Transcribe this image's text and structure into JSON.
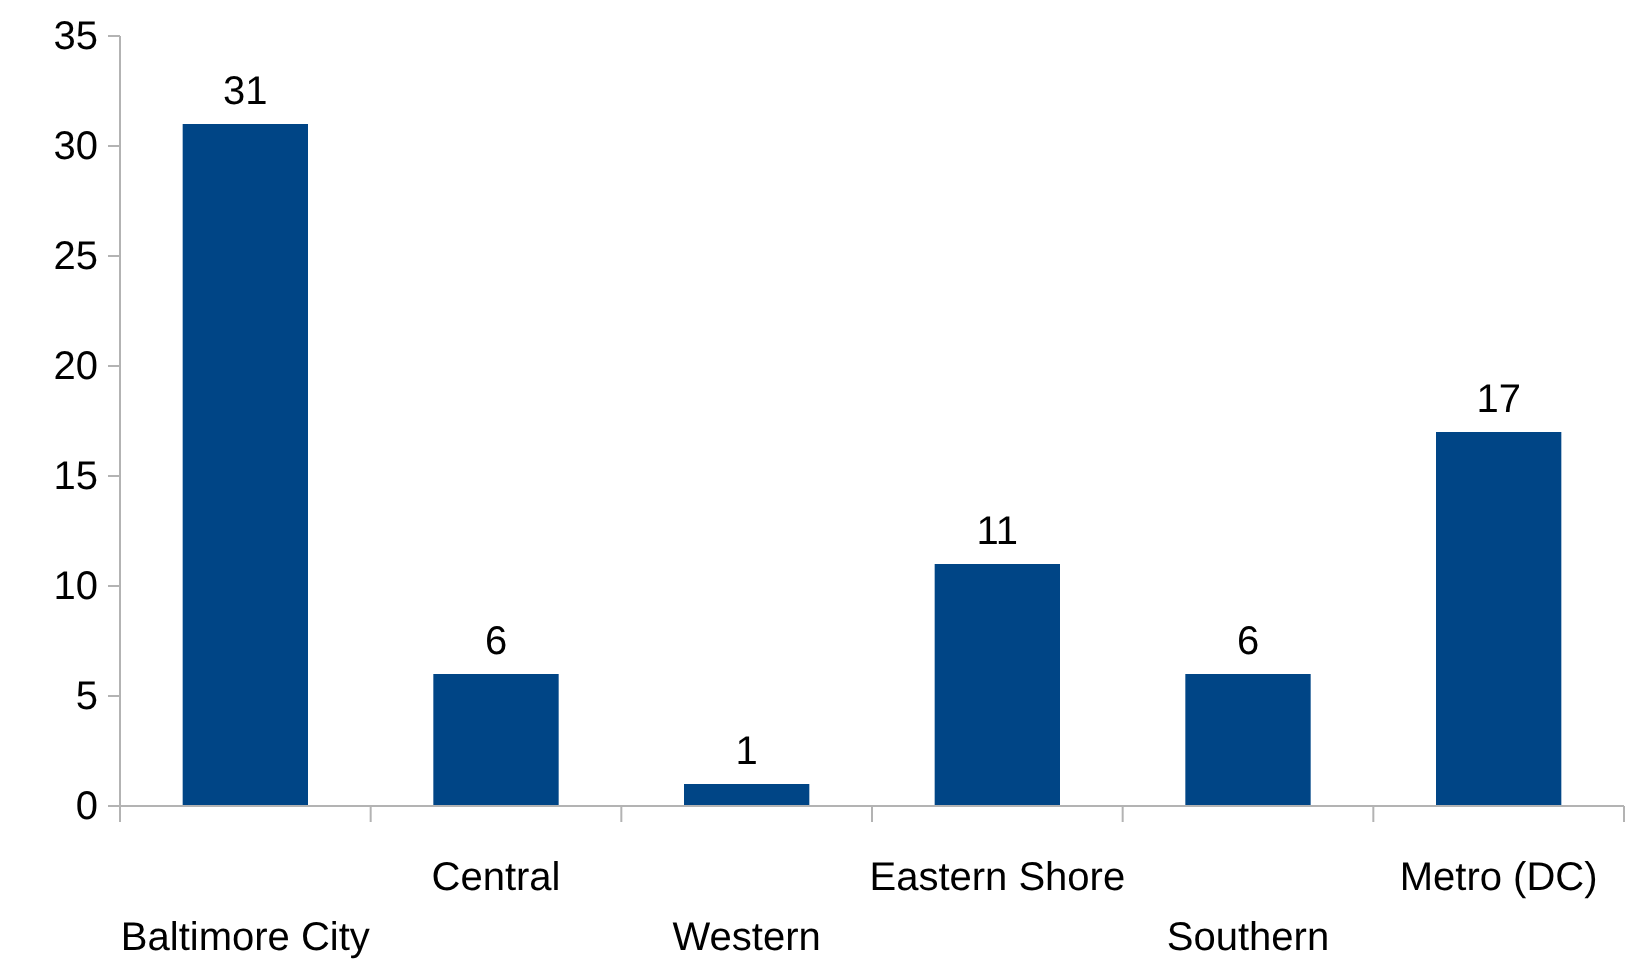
{
  "chart_data": {
    "type": "bar",
    "categories": [
      "Baltimore City",
      "Central",
      "Western",
      "Eastern Shore",
      "Southern",
      "Metro (DC)"
    ],
    "values": [
      31,
      6,
      1,
      11,
      6,
      17
    ],
    "color": "#004586",
    "ylim": [
      0,
      35
    ],
    "yticks": [
      0,
      5,
      10,
      15,
      20,
      25,
      30,
      35
    ],
    "grid": false,
    "data_labels": true
  }
}
